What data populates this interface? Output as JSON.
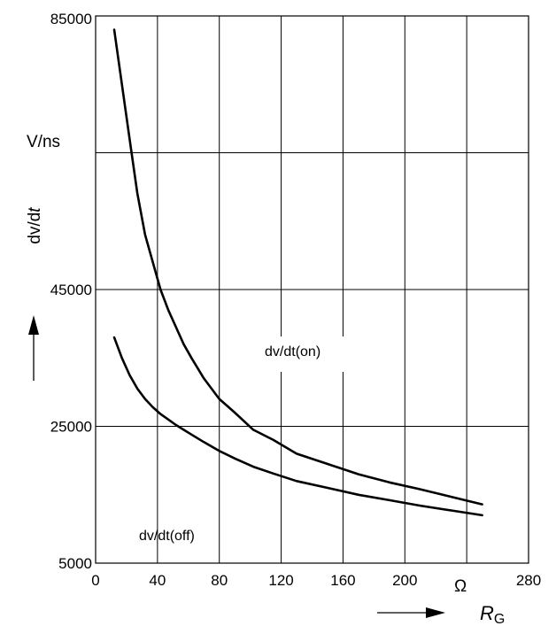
{
  "chart_data": {
    "type": "line",
    "x_ticks": [
      "0",
      "40",
      "80",
      "120",
      "160",
      "200",
      "280"
    ],
    "y_ticks": [
      "5000",
      "25000",
      "45000",
      "85000"
    ],
    "xlim": [
      0,
      280
    ],
    "ylim": [
      5000,
      85000
    ],
    "grid": true,
    "y_unit": "V/ns",
    "ylabel_main": "dv/d",
    "ylabel_italic": "t",
    "x_unit": "Ω",
    "xlabel_main": "R",
    "xlabel_sub": "G",
    "series": [
      {
        "name": "dv/dt(on)",
        "x": [
          12,
          17,
          22,
          27,
          32,
          37,
          42,
          47,
          52,
          57,
          62,
          70,
          80,
          90,
          102,
          115,
          130,
          150,
          170,
          190,
          210,
          230,
          250
        ],
        "y": [
          83000,
          75000,
          67000,
          59000,
          53000,
          49000,
          45000,
          42000,
          39500,
          37000,
          35000,
          32000,
          29000,
          27000,
          24500,
          23000,
          21000,
          19500,
          18000,
          16800,
          15800,
          14700,
          13600
        ]
      },
      {
        "name": "dv/dt(off)",
        "x": [
          12,
          17,
          22,
          27,
          32,
          37,
          42,
          47,
          52,
          57,
          62,
          70,
          80,
          90,
          102,
          115,
          130,
          150,
          170,
          190,
          210,
          230,
          250
        ],
        "y": [
          38000,
          35000,
          32500,
          30500,
          29000,
          27800,
          26800,
          26000,
          25200,
          24500,
          23800,
          22700,
          21400,
          20300,
          19100,
          18100,
          17000,
          16000,
          15000,
          14200,
          13400,
          12700,
          12000
        ]
      }
    ]
  }
}
